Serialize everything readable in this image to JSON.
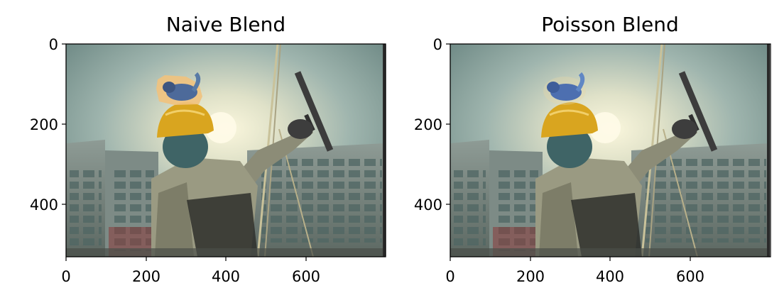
{
  "figure": {
    "panels": [
      {
        "title": "Naive Blend",
        "x_ticks": [
          "0",
          "200",
          "400",
          "600"
        ],
        "y_ticks": [
          "0",
          "200",
          "400"
        ],
        "xlim": [
          0,
          800
        ],
        "ylim": [
          532,
          0
        ],
        "patch_style": "naive"
      },
      {
        "title": "Poisson Blend",
        "x_ticks": [
          "0",
          "200",
          "400",
          "600"
        ],
        "y_ticks": [
          "0",
          "200",
          "400"
        ],
        "xlim": [
          0,
          800
        ],
        "ylim": [
          532,
          0
        ],
        "patch_style": "poisson"
      }
    ],
    "colors": {
      "sky_top": "#8fa8a4",
      "sky_glow": "#f4efd0",
      "building": "#6f7f7a",
      "jacket": "#9a9a82",
      "helmet": "#d9a51f",
      "naive_patch": "#f1c27d",
      "squirrel": "#4d6a9a"
    }
  }
}
